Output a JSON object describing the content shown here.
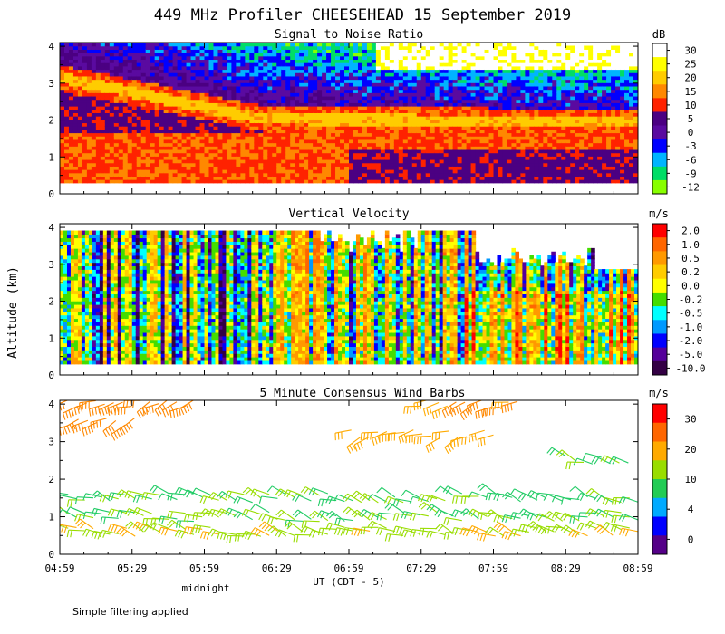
{
  "title": "449 MHz Profiler CHEESEHEAD 15 September 2019",
  "ylabel": "Altitude (km)",
  "xlabel": "UT  (CDT - 5)",
  "midnight_label": "midnight",
  "footer_note": "Simple filtering applied",
  "chart_data": [
    {
      "type": "heatmap",
      "title": "Signal to Noise Ratio",
      "unit": "dB",
      "y_ticks": [
        "0",
        "1",
        "2",
        "3",
        "4"
      ],
      "x_ticks": [
        "04:59",
        "05:29",
        "05:59",
        "06:29",
        "06:59",
        "07:29",
        "07:59",
        "08:29",
        "08:59"
      ],
      "ylim": [
        0,
        4.1
      ],
      "colorbar": {
        "labels": [
          "30",
          "25",
          "20",
          "15",
          "10",
          "5",
          "0",
          "-3",
          "-6",
          "-9",
          "-12"
        ],
        "colors": [
          "#ffffff",
          "#ffff00",
          "#ffcc00",
          "#ff8800",
          "#ff2200",
          "#4b0082",
          "#5a0aa0",
          "#0000ff",
          "#00b4ff",
          "#00dd66",
          "#88ff00"
        ]
      },
      "features": [
        {
          "description_values_dB": "bright layer ~15-20 dB descending from 3.1 km at 04:59 to 2.0 km near 06:30, then ~1.9 km to 08:59"
        },
        {
          "low_level_dB": 10,
          "altitude_km": [
            0.3,
            1.6
          ]
        }
      ]
    },
    {
      "type": "heatmap",
      "title": "Vertical Velocity",
      "unit": "m/s",
      "y_ticks": [
        "0",
        "1",
        "2",
        "3",
        "4"
      ],
      "x_ticks": [
        "04:59",
        "05:29",
        "05:59",
        "06:29",
        "06:59",
        "07:29",
        "07:59",
        "08:29",
        "08:59"
      ],
      "ylim": [
        0,
        4.1
      ],
      "colorbar": {
        "labels": [
          "2.0",
          "1.0",
          "0.5",
          "0.2",
          "0.0",
          "-0.2",
          "-0.5",
          "-1.0",
          "-2.0",
          "-5.0",
          "-10.0"
        ],
        "colors": [
          "#ff0000",
          "#ff6600",
          "#ff9900",
          "#ffcc00",
          "#ffff00",
          "#44dd00",
          "#00ffff",
          "#0099ff",
          "#0000ff",
          "#55009a",
          "#330044"
        ]
      }
    },
    {
      "type": "scatter",
      "title": "5 Minute Consensus Wind Barbs",
      "unit": "m/s",
      "y_ticks": [
        "0",
        "1",
        "2",
        "3",
        "4"
      ],
      "x_ticks": [
        "04:59",
        "05:29",
        "05:59",
        "06:29",
        "06:59",
        "07:29",
        "07:59",
        "08:29",
        "08:59"
      ],
      "ylim": [
        0,
        4.1
      ],
      "colorbar": {
        "labels": [
          "30",
          "20",
          "10",
          "4",
          "0"
        ],
        "colors": [
          "#ff0000",
          "#ff6600",
          "#ffaa00",
          "#99dd00",
          "#22cc55",
          "#00aaff",
          "#0000ff",
          "#550088"
        ]
      },
      "wind_layers": [
        {
          "altitude_km": 4.0,
          "speed_ms": 22,
          "time_range": [
            "04:59",
            "05:55"
          ]
        },
        {
          "altitude_km": 3.5,
          "speed_ms": 20,
          "time_range": [
            "04:59",
            "05:30"
          ]
        },
        {
          "altitude_km": 4.0,
          "speed_ms": 18,
          "time_range": [
            "07:29",
            "08:09"
          ]
        },
        {
          "altitude_km": 3.2,
          "speed_ms": 16,
          "time_range": [
            "07:00",
            "07:59"
          ]
        },
        {
          "altitude_km": 2.5,
          "speed_ms": 9,
          "time_range": [
            "08:29",
            "08:55"
          ]
        },
        {
          "altitude_km": 1.5,
          "speed_ms": 8,
          "time_range": [
            "04:59",
            "08:59"
          ]
        },
        {
          "altitude_km": 1.0,
          "speed_ms": 9,
          "time_range": [
            "04:59",
            "08:59"
          ]
        },
        {
          "altitude_km": 0.6,
          "speed_ms": 12,
          "time_range": [
            "04:59",
            "08:59"
          ]
        }
      ]
    }
  ]
}
